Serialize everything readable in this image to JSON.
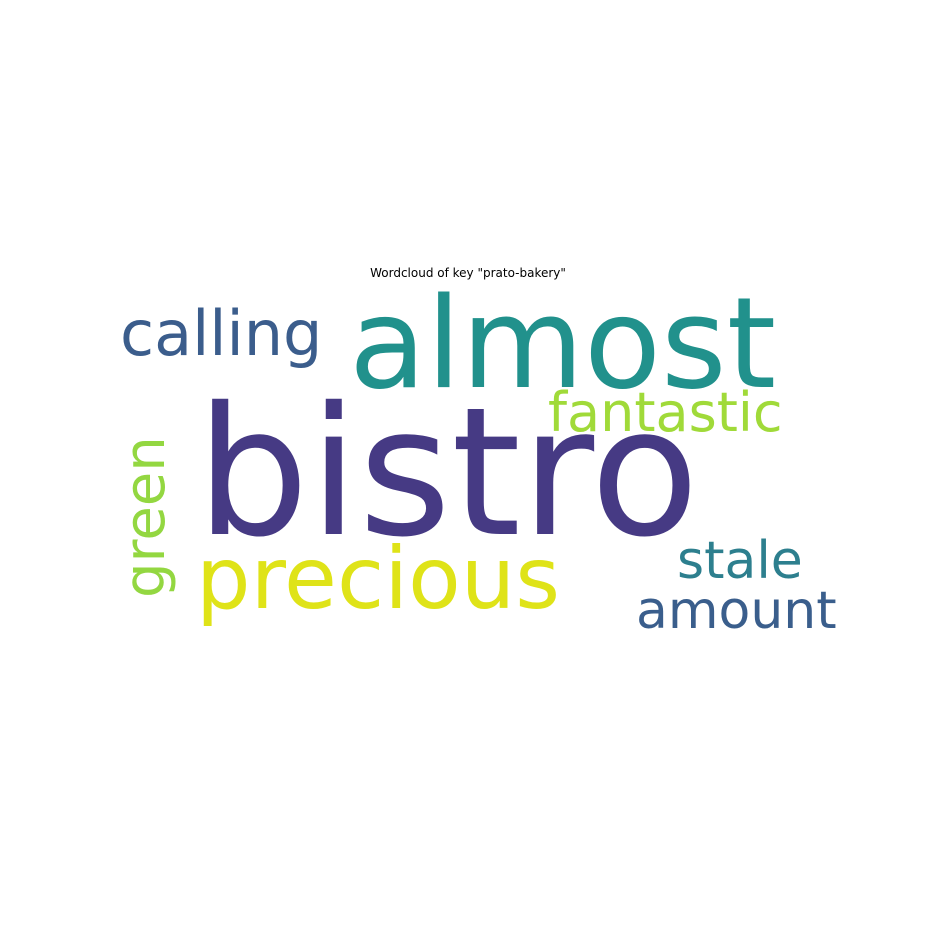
{
  "chart_data": {
    "type": "wordcloud",
    "title": "Wordcloud of key \"prato-bakery\"",
    "words": [
      {
        "text": "bistro",
        "weight": 1.0,
        "color": "#463a84"
      },
      {
        "text": "almost",
        "weight": 0.8,
        "color": "#21918c"
      },
      {
        "text": "precious",
        "weight": 0.62,
        "color": "#dfe318"
      },
      {
        "text": "calling",
        "weight": 0.48,
        "color": "#3b5d8c"
      },
      {
        "text": "fantastic",
        "weight": 0.42,
        "color": "#a0da39"
      },
      {
        "text": "green",
        "weight": 0.42,
        "color": "#93d741"
      },
      {
        "text": "stale",
        "weight": 0.4,
        "color": "#2d7f8e"
      },
      {
        "text": "amount",
        "weight": 0.4,
        "color": "#3a5e8c"
      }
    ]
  }
}
